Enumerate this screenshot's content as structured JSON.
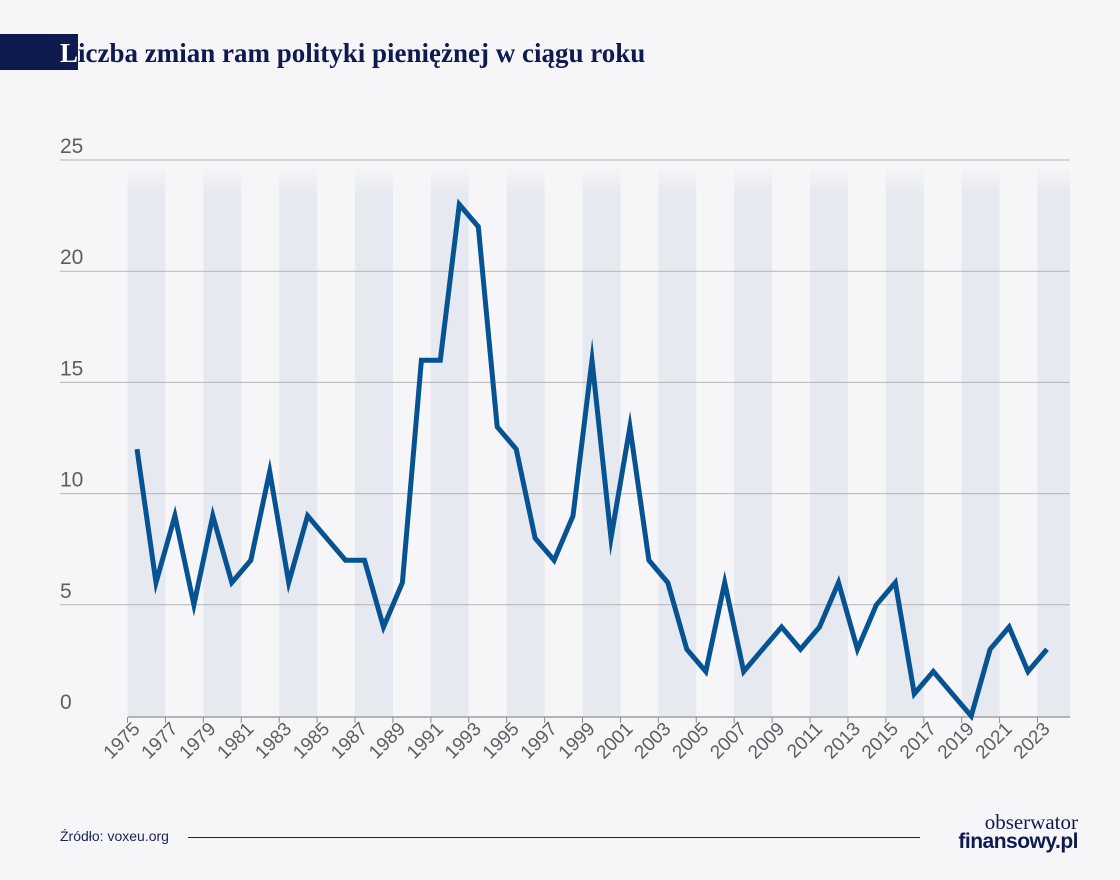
{
  "header": {
    "title_first": "L",
    "title_rest": "iczba zmian ram polityki pieniężnej w ciągu roku"
  },
  "footer": {
    "source": "Źródło: voxeu.org",
    "logo_line1": "obserwator",
    "logo_line2": "finansowy.pl"
  },
  "colors": {
    "line": "#075392",
    "band": "#e6e9f0",
    "grid": "#b4b4b9",
    "title": "#0f1a4f"
  },
  "chart_data": {
    "type": "line",
    "title": "Liczba zmian ram polityki pieniężnej w ciągu roku",
    "xlabel": "",
    "ylabel": "",
    "ylim": [
      0,
      25
    ],
    "yticks": [
      0,
      5,
      10,
      15,
      20,
      25
    ],
    "xtick_labels": [
      "1975",
      "1977",
      "1979",
      "1981",
      "1983",
      "1985",
      "1987",
      "1989",
      "1991",
      "1993",
      "1995",
      "1997",
      "1999",
      "2001",
      "2003",
      "2005",
      "2007",
      "2009",
      "2011",
      "2013",
      "2015",
      "2017",
      "2019",
      "2021",
      "2023"
    ],
    "grid": true,
    "series": [
      {
        "x": [
          1975,
          1976,
          1977,
          1978,
          1979,
          1980,
          1981,
          1982,
          1983,
          1984,
          1985,
          1986,
          1987,
          1988,
          1989,
          1990,
          1991,
          1992,
          1993,
          1994,
          1995,
          1996,
          1997,
          1998,
          1999,
          2000,
          2001,
          2002,
          2003,
          2004,
          2005,
          2006,
          2007,
          2008,
          2009,
          2010,
          2011,
          2012,
          2013,
          2014,
          2015,
          2016,
          2017,
          2018,
          2019,
          2020,
          2021,
          2022,
          2023
        ],
        "values": [
          12,
          6,
          9,
          5,
          9,
          6,
          7,
          11,
          6,
          9,
          8,
          7,
          7,
          4,
          6,
          16,
          16,
          23,
          22,
          13,
          12,
          8,
          7,
          9,
          16,
          8,
          13,
          7,
          6,
          3,
          2,
          6,
          2,
          3,
          4,
          3,
          4,
          6,
          3,
          5,
          6,
          1,
          2,
          1,
          0,
          3,
          4,
          2,
          3
        ]
      }
    ]
  }
}
